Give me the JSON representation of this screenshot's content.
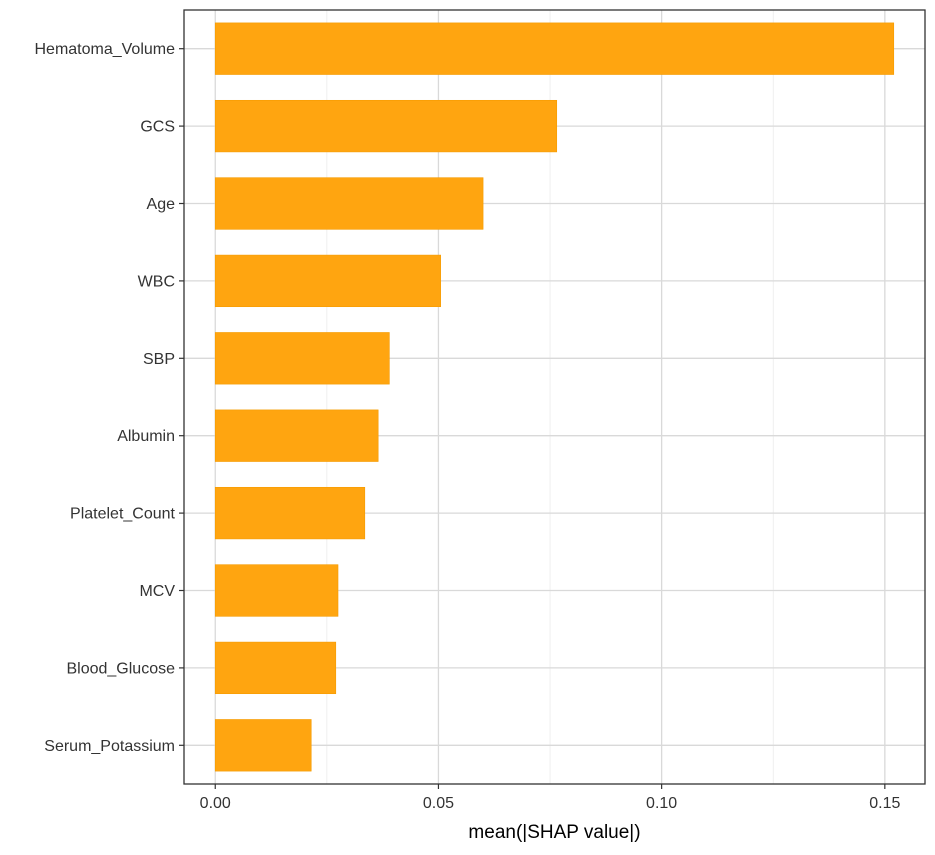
{
  "chart_data": {
    "type": "bar",
    "orientation": "horizontal",
    "categories": [
      "Hematoma_Volume",
      "GCS",
      "Age",
      "WBC",
      "SBP",
      "Albumin",
      "Platelet_Count",
      "MCV",
      "Blood_Glucose",
      "Serum_Potassium"
    ],
    "values": [
      0.152,
      0.0765,
      0.06,
      0.0505,
      0.039,
      0.0365,
      0.0335,
      0.0275,
      0.027,
      0.0215
    ],
    "xlabel": "mean(|SHAP value|)",
    "ylabel": "",
    "title": "",
    "xlim": [
      -0.007,
      0.159
    ],
    "x_ticks": [
      0,
      0.05,
      0.1,
      0.15
    ],
    "x_tick_labels": [
      "0.00",
      "0.05",
      "0.10",
      "0.15"
    ],
    "bar_color": "#FFA510",
    "grid": true,
    "legend": "none"
  }
}
